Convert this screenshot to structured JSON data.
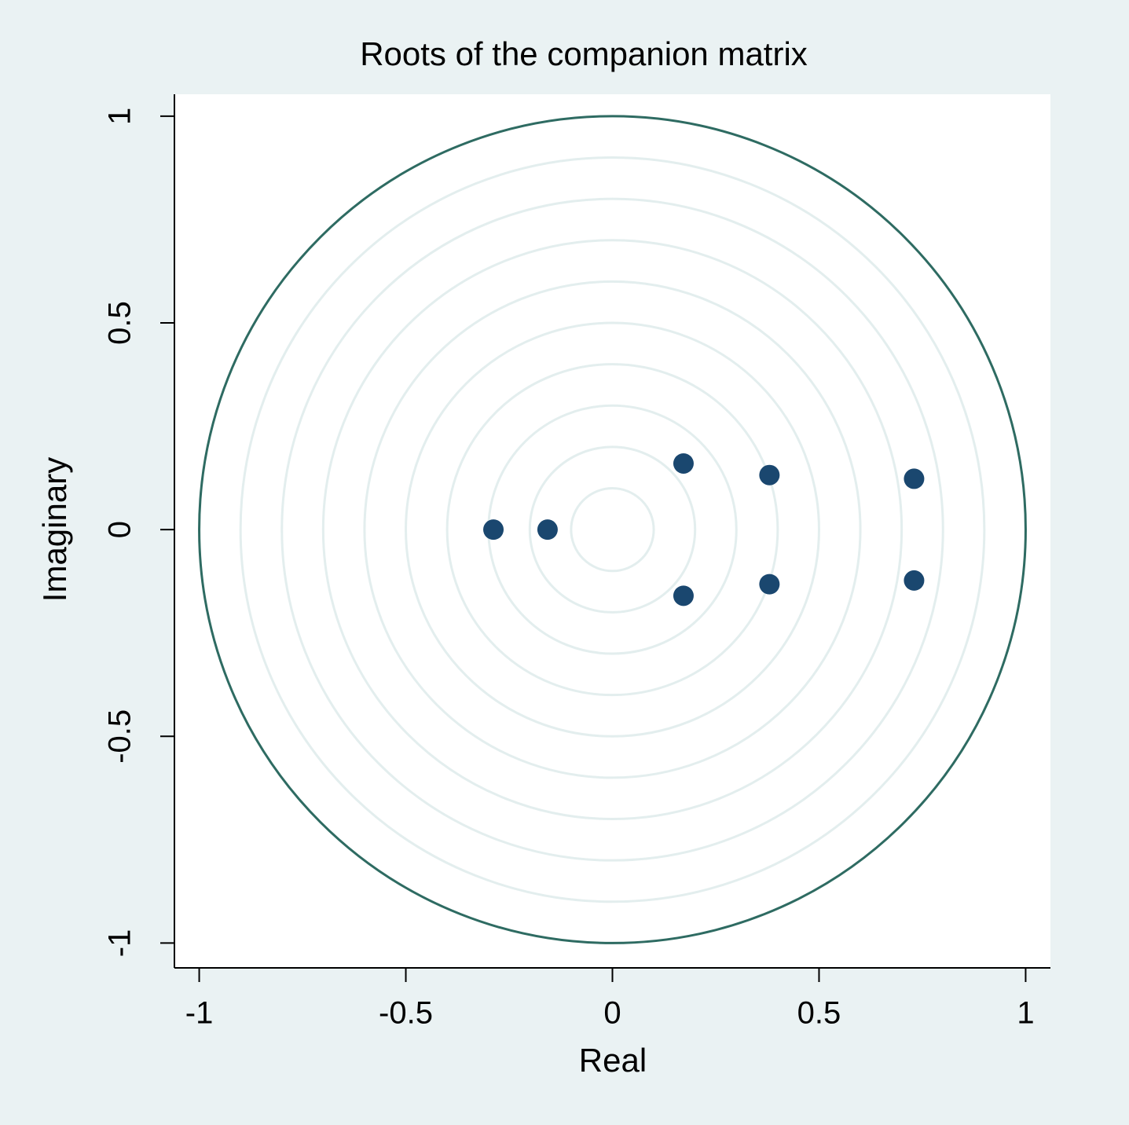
{
  "chart_data": {
    "type": "scatter",
    "title": "Roots of the companion matrix",
    "x_label": "Real",
    "y_label": "Imaginary",
    "x": [
      -0.288,
      -0.157,
      0.172,
      0.172,
      0.38,
      0.38,
      0.73,
      0.73
    ],
    "values": [
      0,
      0,
      0.16,
      -0.16,
      0.132,
      -0.132,
      0.123,
      -0.123
    ],
    "color": "#1a476f",
    "unit_circle": 1,
    "unit_circle_color": "#2e6b62",
    "grid_circles": [
      0.1,
      0.2,
      0.3,
      0.4,
      0.5,
      0.6,
      0.7,
      0.8,
      0.9
    ],
    "grid_color": "#e3eeee",
    "xlim": [
      -1.06,
      1.06
    ],
    "ylim": [
      -1.06,
      1.053
    ],
    "xticks": [
      -1,
      -0.5,
      0,
      0.5,
      1
    ],
    "yticks": [
      -1,
      -0.5,
      0,
      0.5,
      1
    ]
  }
}
